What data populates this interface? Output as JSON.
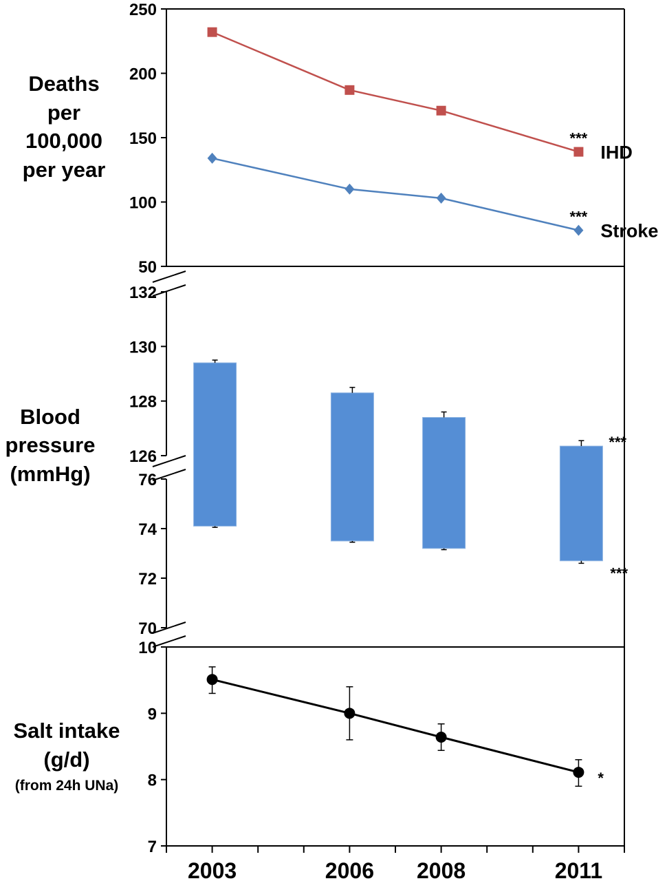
{
  "chart_data": [
    {
      "type": "line",
      "ylabel_lines": [
        "Deaths",
        "per",
        "100,000",
        "per year"
      ],
      "ylim": [
        50,
        250
      ],
      "yticks": [
        "250",
        "200",
        "150",
        "100",
        "50"
      ],
      "x": [
        2003,
        2006,
        2008,
        2011
      ],
      "series": [
        {
          "name": "IHD",
          "values": [
            232,
            187,
            171,
            139
          ],
          "color": "#c0504d",
          "marker": "square",
          "annotation": "***"
        },
        {
          "name": "Stroke",
          "values": [
            134,
            110,
            103,
            78
          ],
          "color": "#4f81bd",
          "marker": "diamond",
          "annotation": "***"
        }
      ]
    },
    {
      "type": "bar",
      "ylabel_lines": [
        "Blood",
        "pressure",
        "(mmHg)"
      ],
      "x": [
        2003,
        2006,
        2008,
        2011
      ],
      "systolic_ylim": [
        126,
        132
      ],
      "systolic_yticks": [
        "132",
        "130",
        "128",
        "126"
      ],
      "diastolic_ylim": [
        70,
        76
      ],
      "diastolic_yticks": [
        "76",
        "74",
        "72",
        "70"
      ],
      "systolic": [
        129.4,
        128.3,
        127.4,
        126.35
      ],
      "systolic_error_upper": [
        129.5,
        128.5,
        127.6,
        126.55
      ],
      "diastolic": [
        74.1,
        73.5,
        73.2,
        72.7
      ],
      "diastolic_error_lower": [
        74.05,
        73.45,
        73.15,
        72.6
      ],
      "color": "#558ed5",
      "annotations": {
        "systolic_2011": "***",
        "diastolic_2011": "***"
      }
    },
    {
      "type": "line",
      "ylabel_lines": [
        "Salt intake",
        "(g/d)"
      ],
      "ylabel_sub": "(from 24h UNa)",
      "ylim": [
        7,
        10
      ],
      "yticks": [
        "10",
        "9",
        "8",
        "7"
      ],
      "x": [
        2003,
        2006,
        2008,
        2011
      ],
      "xlim": [
        2002,
        2012
      ],
      "xticklabels": [
        "2003",
        "2006",
        "2008",
        "2011"
      ],
      "series": [
        {
          "values": [
            9.51,
            9.0,
            8.64,
            8.11
          ],
          "error_upper": [
            9.7,
            9.4,
            8.84,
            8.3
          ],
          "error_lower": [
            9.3,
            8.6,
            8.44,
            7.9
          ],
          "color": "#000000",
          "marker": "circle",
          "annotation": "*"
        }
      ]
    }
  ]
}
